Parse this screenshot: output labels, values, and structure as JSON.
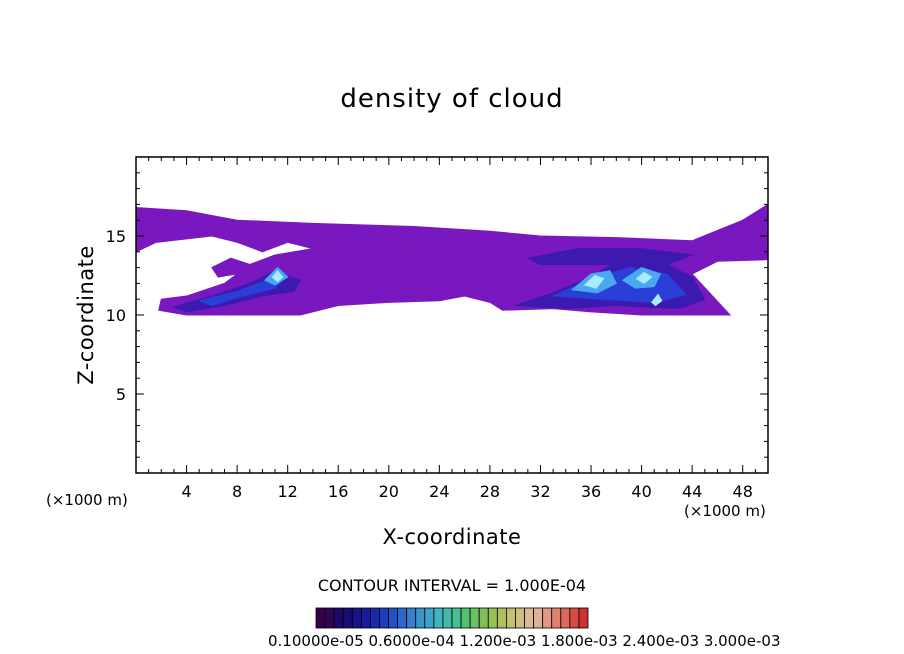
{
  "chart_data": {
    "type": "heatmap",
    "title": "density of cloud",
    "xlabel": "X-coordinate",
    "ylabel": "Z-coordinate",
    "x_unit": "(×1000 m)",
    "z_unit": "(×1000 m)",
    "xlim": [
      0,
      50
    ],
    "ylim": [
      0,
      20
    ],
    "x_ticks": [
      4,
      8,
      12,
      16,
      20,
      24,
      28,
      32,
      36,
      40,
      44,
      48
    ],
    "y_ticks": [
      5,
      10,
      15
    ],
    "contour_interval": "CONTOUR INTERVAL = 1.000E-04",
    "colorbar_labels": "0.10000e-05  0.6000e-04  1.200e-03  1.800e-03  2.400e-03  3.000e-03",
    "colorbar_colors": [
      "#3a0046",
      "#1a0a70",
      "#1a1aa0",
      "#2050c8",
      "#3a8ed0",
      "#40b8c0",
      "#50c078",
      "#8ac050",
      "#c8c070",
      "#e0b8a0",
      "#e07868",
      "#d03030"
    ],
    "regions": [
      {
        "level": 1,
        "poly": [
          [
            0,
            14
          ],
          [
            0,
            16.8
          ],
          [
            4,
            16.6
          ],
          [
            8,
            16
          ],
          [
            14,
            15.8
          ],
          [
            22,
            15.6
          ],
          [
            28,
            15.3
          ],
          [
            32,
            15
          ],
          [
            38,
            14.9
          ],
          [
            44,
            14.7
          ],
          [
            48,
            16
          ],
          [
            50,
            17
          ],
          [
            50,
            13.5
          ],
          [
            46,
            13.4
          ],
          [
            44,
            12.6
          ],
          [
            47,
            10
          ],
          [
            40,
            10
          ],
          [
            36,
            10.2
          ],
          [
            33,
            10.4
          ],
          [
            29,
            10.3
          ],
          [
            28,
            10.8
          ],
          [
            26,
            11.2
          ],
          [
            24,
            10.9
          ],
          [
            20,
            10.8
          ],
          [
            16,
            10.6
          ],
          [
            13,
            10
          ],
          [
            8,
            10
          ],
          [
            4,
            10
          ],
          [
            1.8,
            10.3
          ],
          [
            2,
            11
          ],
          [
            4,
            11.2
          ],
          [
            7,
            12
          ],
          [
            9,
            13.2
          ],
          [
            11,
            13.8
          ],
          [
            14,
            14.2
          ],
          [
            12,
            14.6
          ],
          [
            10,
            14
          ],
          [
            8,
            14.6
          ],
          [
            6,
            15
          ],
          [
            1.6,
            14.6
          ]
        ]
      },
      {
        "level": 1,
        "poly": [
          [
            6,
            13
          ],
          [
            7.5,
            13.6
          ],
          [
            9,
            13.2
          ],
          [
            8,
            12.6
          ],
          [
            6.5,
            12.4
          ]
        ]
      },
      {
        "level": 2,
        "poly": [
          [
            3,
            10.5
          ],
          [
            6,
            11.2
          ],
          [
            9,
            12
          ],
          [
            11,
            12.8
          ],
          [
            13,
            12.2
          ],
          [
            12.5,
            11.5
          ],
          [
            10,
            11.2
          ],
          [
            7,
            10.6
          ],
          [
            4,
            10.2
          ]
        ]
      },
      {
        "level": 2,
        "poly": [
          [
            30,
            10.6
          ],
          [
            33,
            11.4
          ],
          [
            36,
            12.4
          ],
          [
            38,
            13.4
          ],
          [
            41,
            13.6
          ],
          [
            44,
            12.4
          ],
          [
            45,
            11
          ],
          [
            43,
            10.4
          ],
          [
            38,
            10.6
          ],
          [
            34,
            10.4
          ]
        ]
      },
      {
        "level": 2,
        "poly": [
          [
            31,
            13.6
          ],
          [
            35,
            14.2
          ],
          [
            40,
            14.2
          ],
          [
            44,
            13.8
          ],
          [
            42,
            13.2
          ],
          [
            37,
            13.2
          ],
          [
            32,
            13.2
          ]
        ]
      },
      {
        "level": 3,
        "poly": [
          [
            5,
            10.9
          ],
          [
            8,
            11.5
          ],
          [
            10,
            12.1
          ],
          [
            11.8,
            12.4
          ],
          [
            11,
            11.7
          ],
          [
            8,
            11.1
          ],
          [
            6,
            10.6
          ]
        ]
      },
      {
        "level": 3,
        "poly": [
          [
            33,
            11.2
          ],
          [
            36,
            12.3
          ],
          [
            39,
            13
          ],
          [
            42,
            12.6
          ],
          [
            43.5,
            11.3
          ],
          [
            41,
            10.8
          ],
          [
            37,
            11
          ]
        ]
      },
      {
        "level": 4,
        "poly": [
          [
            10.2,
            12.2
          ],
          [
            11.2,
            13
          ],
          [
            12,
            12.4
          ],
          [
            11,
            11.9
          ]
        ]
      },
      {
        "level": 4,
        "poly": [
          [
            34.5,
            11.6
          ],
          [
            36,
            12.6
          ],
          [
            37.5,
            12.8
          ],
          [
            38,
            12
          ],
          [
            36.5,
            11.4
          ]
        ]
      },
      {
        "level": 4,
        "poly": [
          [
            38.5,
            12.2
          ],
          [
            40,
            13
          ],
          [
            41.5,
            12.6
          ],
          [
            41,
            11.8
          ],
          [
            39.5,
            11.7
          ]
        ]
      },
      {
        "level": 5,
        "poly": [
          [
            10.8,
            12.4
          ],
          [
            11.2,
            12.8
          ],
          [
            11.6,
            12.4
          ],
          [
            11.2,
            12.1
          ]
        ]
      },
      {
        "level": 5,
        "poly": [
          [
            35.5,
            11.9
          ],
          [
            36.3,
            12.5
          ],
          [
            37,
            12.3
          ],
          [
            36.4,
            11.7
          ]
        ]
      },
      {
        "level": 5,
        "poly": [
          [
            39.6,
            12.3
          ],
          [
            40.2,
            12.7
          ],
          [
            40.8,
            12.4
          ],
          [
            40.2,
            12
          ]
        ]
      },
      {
        "level": 5,
        "poly": [
          [
            40.8,
            10.8
          ],
          [
            41.3,
            11.3
          ],
          [
            41.6,
            10.9
          ],
          [
            41.1,
            10.6
          ]
        ]
      }
    ]
  }
}
